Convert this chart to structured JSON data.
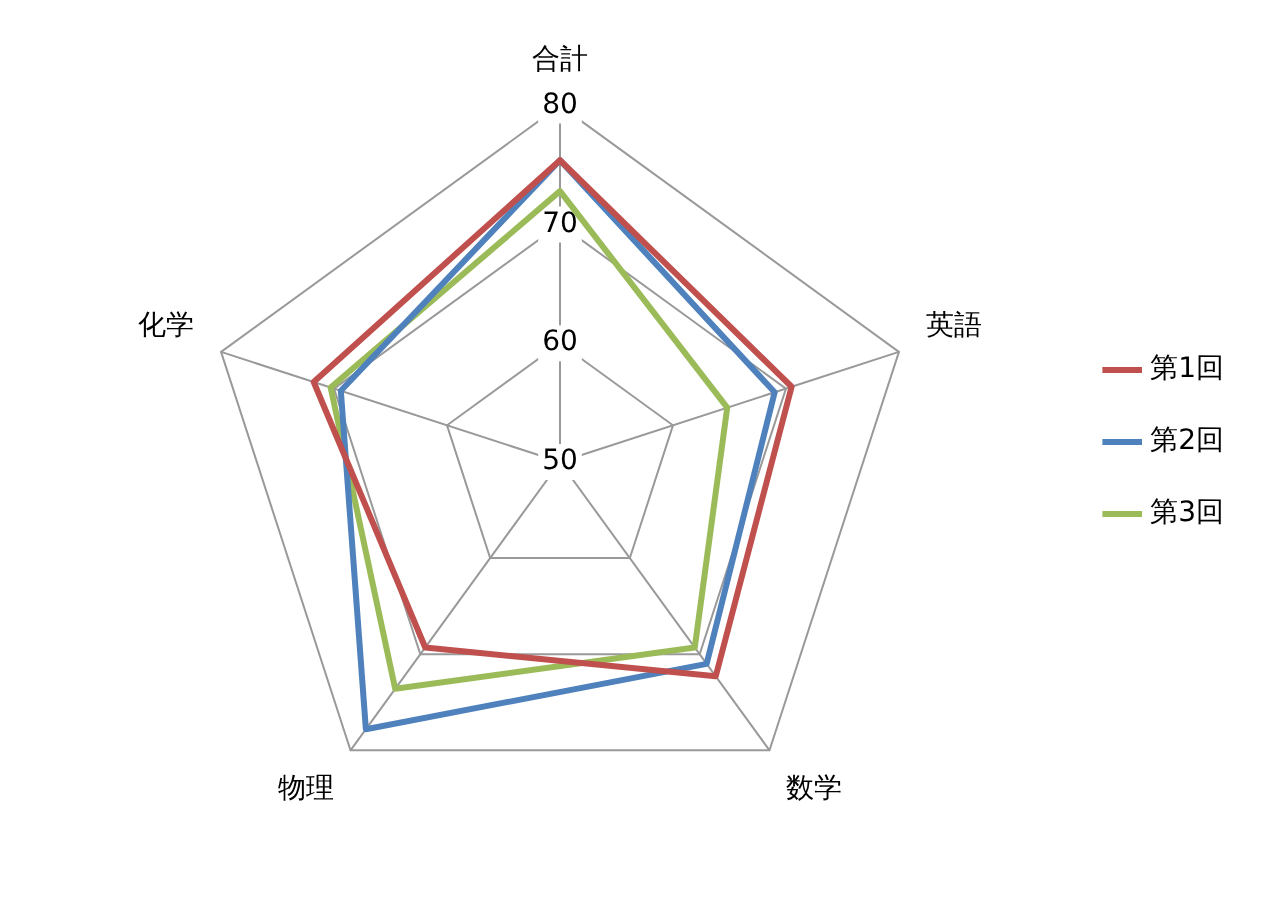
{
  "chart_data": {
    "type": "radar",
    "categories": [
      "合計",
      "英語",
      "数学",
      "物理",
      "化学"
    ],
    "series": [
      {
        "name": "第1回",
        "color": "#c0504d",
        "values": [
          75.4,
          70.5,
          72.3,
          69.3,
          71.8
        ]
      },
      {
        "name": "第2回",
        "color": "#4f81bd",
        "values": [
          75.4,
          69,
          71,
          77.8,
          69.4
        ]
      },
      {
        "name": "第3回",
        "color": "#9bbb59",
        "values": [
          72.8,
          64.8,
          69.3,
          73.6,
          70.3
        ]
      }
    ],
    "ylim": [
      50,
      80
    ],
    "yticks": [
      50,
      60,
      70,
      80
    ],
    "grid": true,
    "legend": "right",
    "marker": "none"
  }
}
